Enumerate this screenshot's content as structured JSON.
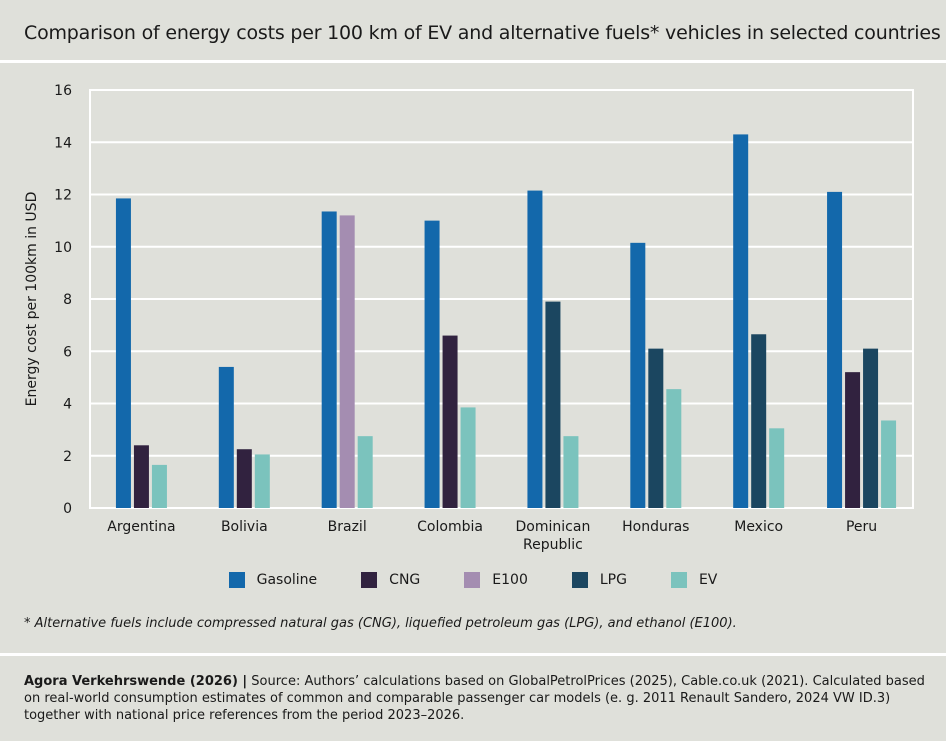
{
  "header": {
    "title": "Comparison of energy costs per 100 km of EV and alternative fuels* vehicles in selected countries"
  },
  "chart_data": {
    "type": "bar",
    "ylabel": "Energy cost per 100km in USD",
    "xlabel": "",
    "ylim": [
      0,
      16
    ],
    "yticks": [
      0,
      2,
      4,
      6,
      8,
      10,
      12,
      14,
      16
    ],
    "grid": true,
    "legend_position": "bottom",
    "categories": [
      {
        "lines": [
          "Argentina"
        ]
      },
      {
        "lines": [
          "Bolivia"
        ]
      },
      {
        "lines": [
          "Brazil"
        ]
      },
      {
        "lines": [
          "Colombia"
        ]
      },
      {
        "lines": [
          "Dominican",
          "Republic"
        ]
      },
      {
        "lines": [
          "Honduras"
        ]
      },
      {
        "lines": [
          "Mexico"
        ]
      },
      {
        "lines": [
          "Peru"
        ]
      }
    ],
    "series": [
      {
        "name": "Gasoline",
        "color": "#1368ab",
        "values": [
          11.85,
          5.4,
          11.35,
          11.0,
          12.15,
          10.15,
          14.3,
          12.1
        ]
      },
      {
        "name": "CNG",
        "color": "#31223f",
        "values": [
          2.4,
          2.25,
          null,
          6.6,
          null,
          null,
          null,
          5.2
        ]
      },
      {
        "name": "E100",
        "color": "#a48db1",
        "values": [
          null,
          null,
          11.2,
          null,
          null,
          null,
          null,
          null
        ]
      },
      {
        "name": "LPG",
        "color": "#1b4660",
        "values": [
          null,
          null,
          null,
          null,
          7.9,
          6.1,
          6.65,
          6.1
        ]
      },
      {
        "name": "EV",
        "color": "#7bc3bd",
        "values": [
          1.65,
          2.05,
          2.75,
          3.85,
          2.75,
          4.55,
          3.05,
          3.35
        ]
      }
    ]
  },
  "footnote": "* Alternative fuels include compressed natural gas (CNG), liquefied petroleum gas (LPG), and ethanol (E100).",
  "source": {
    "author": "Agora Verkehrswende (2026) |",
    "text": " Source: Authors’ calculations based on GlobalPetrolPrices (2025), Cable.co.uk (2021). Calculated based on real-world consumption estimates of common and comparable passenger car models (e. g. 2011 Renault Sandero, 2024 VW ID.3) together with national price references from the period 2023–2026."
  }
}
